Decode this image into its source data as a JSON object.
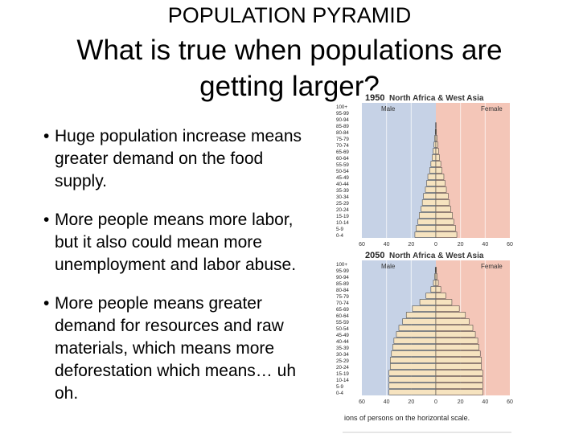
{
  "slide": {
    "small_title": "POPULATION PYRAMID",
    "title": "What is true when populations are getting larger?",
    "bullets": [
      "Huge population increase means greater demand on the food supply.",
      "More people means more labor, but it also could mean more unemployment and labor abuse.",
      "More people means greater demand for resources and raw materials, which means more deforestation which means… uh oh."
    ],
    "bullet_symbol": "•"
  },
  "figure": {
    "colors": {
      "male_bg": "#c6d2e6",
      "female_bg": "#f4c6b8",
      "bar": "#f6e3bf",
      "bar_stroke": "#333333",
      "header_bg": "#ffffff"
    },
    "age_labels": [
      "100+",
      "95-99",
      "90-94",
      "85-89",
      "80-84",
      "75-79",
      "70-74",
      "65-69",
      "60-64",
      "55-59",
      "50-54",
      "45-49",
      "40-44",
      "35-39",
      "30-34",
      "25-29",
      "20-24",
      "15-19",
      "10-14",
      "5-9",
      "0-4"
    ],
    "axis_ticks": [
      "60",
      "40",
      "20",
      "0",
      "20",
      "40",
      "60"
    ],
    "male_label": "Male",
    "female_label": "Female",
    "pyramids": [
      {
        "year": "1950",
        "title": "North Africa & West Asia",
        "male": [
          0,
          0,
          0,
          0.2,
          0.5,
          1,
          1.5,
          2.2,
          3,
          4,
          5,
          6.5,
          7.5,
          8.5,
          10,
          11,
          12,
          13.5,
          14.5,
          16,
          17
        ],
        "female": [
          0,
          0,
          0,
          0.2,
          0.5,
          1,
          1.5,
          2.2,
          3,
          4,
          5,
          6.5,
          7.5,
          8.5,
          10,
          11,
          12,
          13.5,
          14.5,
          16,
          17
        ]
      },
      {
        "year": "2050",
        "title": "North Africa & West Asia",
        "male": [
          0,
          0.5,
          1,
          2,
          4,
          8,
          13,
          19,
          24,
          27,
          30,
          32,
          34,
          35,
          36,
          37,
          37,
          38,
          38,
          38,
          38
        ],
        "female": [
          0,
          0.5,
          1,
          2,
          4,
          8,
          13,
          19,
          24,
          27,
          30,
          32,
          34,
          35,
          36,
          37,
          37,
          38,
          38,
          38,
          38
        ]
      }
    ],
    "footer": "ions of persons on the horizontal scale."
  }
}
